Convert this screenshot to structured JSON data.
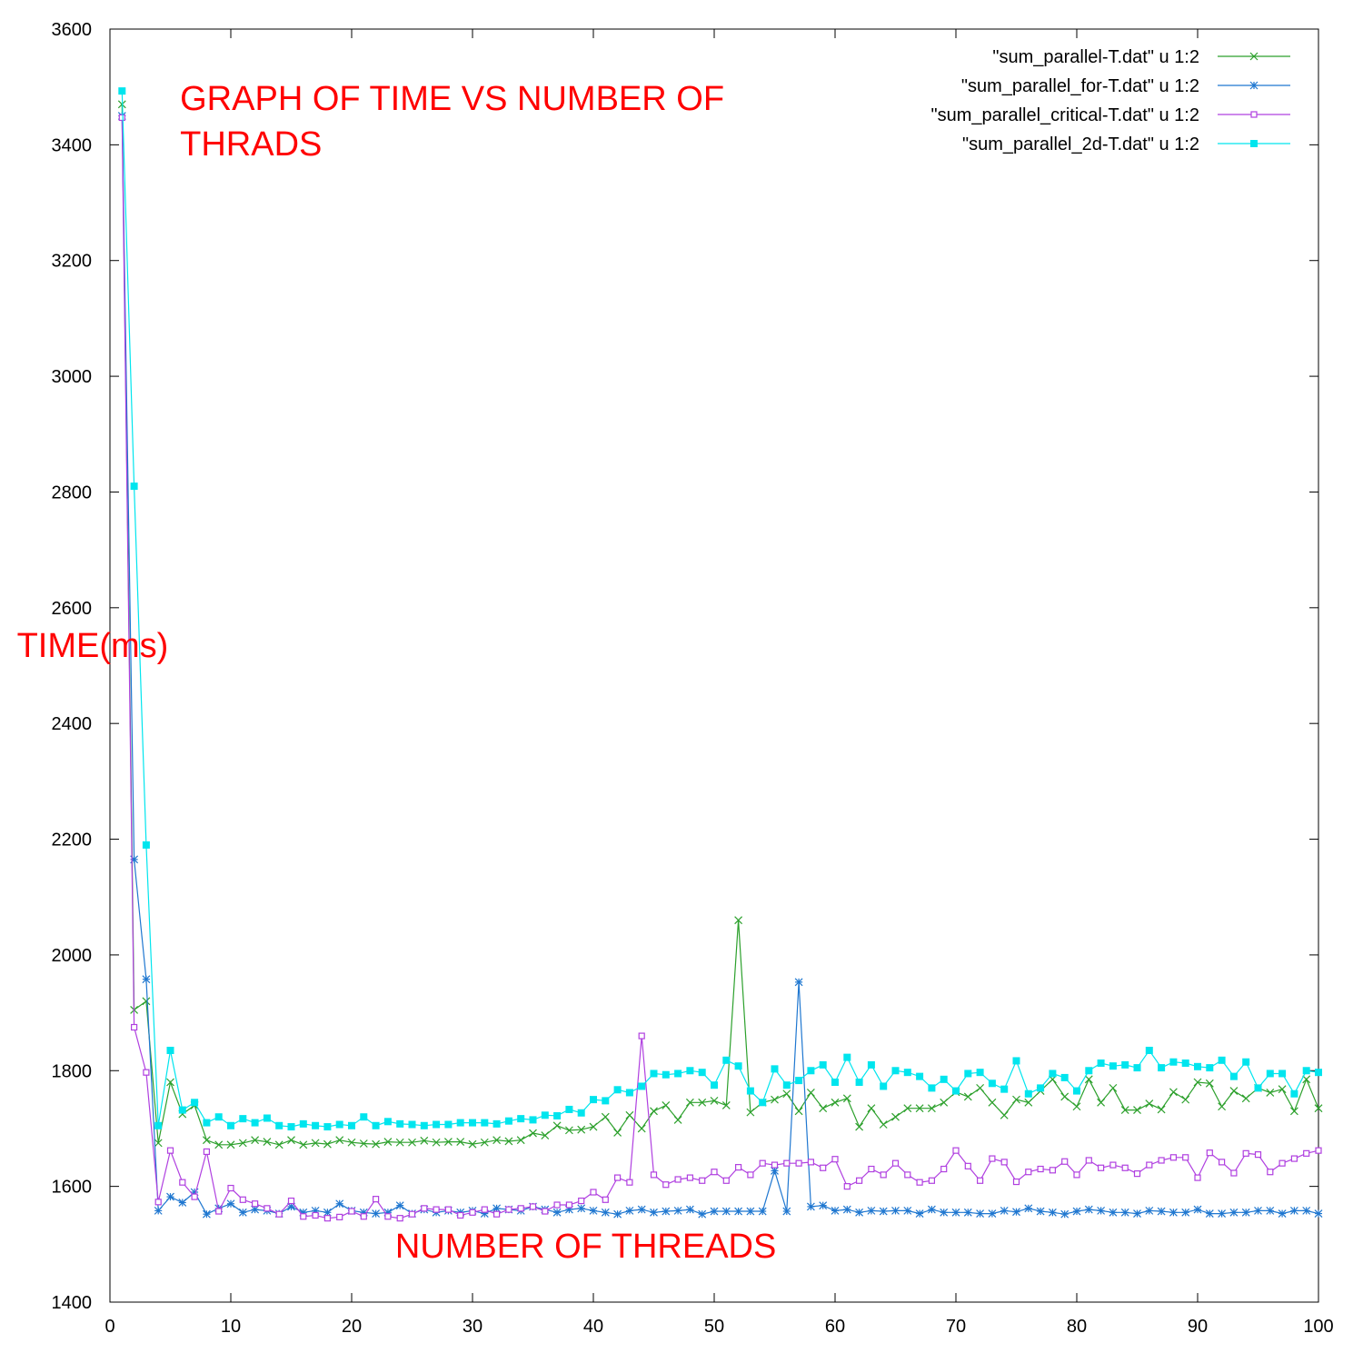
{
  "chart_data": {
    "type": "line",
    "title": "",
    "xlabel": "",
    "ylabel": "",
    "xlim": [
      0,
      100
    ],
    "ylim": [
      1400,
      3600
    ],
    "x_ticks": [
      0,
      10,
      20,
      30,
      40,
      50,
      60,
      70,
      80,
      90,
      100
    ],
    "y_ticks": [
      1400,
      1600,
      1800,
      2000,
      2200,
      2400,
      2600,
      2800,
      3000,
      3200,
      3400,
      3600
    ],
    "grid": false,
    "legend_position": "top-right",
    "annotations": [
      {
        "text": "GRAPH OF TIME VS NUMBER OF",
        "x": 5.8,
        "y": 3460
      },
      {
        "text": "THRADS",
        "x": 5.8,
        "y": 3382
      },
      {
        "text": "TIME(ms)",
        "x": -7.7,
        "y": 2515
      },
      {
        "text": "NUMBER OF THREADS",
        "x": 23.6,
        "y": 1477
      }
    ],
    "series": [
      {
        "name": "\"sum_parallel-T.dat\" u 1:2",
        "color": "#2ca02c",
        "marker": "cross",
        "x": [
          1,
          2,
          3,
          4,
          5,
          6,
          7,
          8,
          9,
          10,
          11,
          12,
          13,
          14,
          15,
          16,
          17,
          18,
          19,
          20,
          21,
          22,
          23,
          24,
          25,
          26,
          27,
          28,
          29,
          30,
          31,
          32,
          33,
          34,
          35,
          36,
          37,
          38,
          39,
          40,
          41,
          42,
          43,
          44,
          45,
          46,
          47,
          48,
          49,
          50,
          51,
          52,
          53,
          54,
          55,
          56,
          57,
          58,
          59,
          60,
          61,
          62,
          63,
          64,
          65,
          66,
          67,
          68,
          69,
          70,
          71,
          72,
          73,
          74,
          75,
          76,
          77,
          78,
          79,
          80,
          81,
          82,
          83,
          84,
          85,
          86,
          87,
          88,
          89,
          90,
          91,
          92,
          93,
          94,
          95,
          96,
          97,
          98,
          99,
          100
        ],
        "y": [
          3470,
          1905,
          1920,
          1675,
          1780,
          1725,
          1740,
          1680,
          1672,
          1672,
          1675,
          1680,
          1677,
          1672,
          1680,
          1672,
          1675,
          1673,
          1680,
          1676,
          1674,
          1673,
          1677,
          1676,
          1676,
          1679,
          1676,
          1677,
          1677,
          1673,
          1676,
          1680,
          1678,
          1680,
          1692,
          1688,
          1705,
          1697,
          1698,
          1703,
          1720,
          1693,
          1723,
          1700,
          1730,
          1740,
          1715,
          1745,
          1745,
          1748,
          1740,
          2060,
          1728,
          1745,
          1750,
          1760,
          1730,
          1762,
          1735,
          1745,
          1752,
          1703,
          1735,
          1707,
          1720,
          1735,
          1735,
          1735,
          1745,
          1763,
          1755,
          1770,
          1745,
          1723,
          1750,
          1745,
          1765,
          1785,
          1755,
          1738,
          1785,
          1745,
          1770,
          1732,
          1732,
          1743,
          1733,
          1763,
          1750,
          1780,
          1778,
          1738,
          1765,
          1752,
          1770,
          1762,
          1768,
          1730,
          1785,
          1735
        ]
      },
      {
        "name": "\"sum_parallel_for-T.dat\" u 1:2",
        "color": "#1f77d0",
        "marker": "star",
        "x": [
          1,
          2,
          3,
          4,
          5,
          6,
          7,
          8,
          9,
          10,
          11,
          12,
          13,
          14,
          15,
          16,
          17,
          18,
          19,
          20,
          21,
          22,
          23,
          24,
          25,
          26,
          27,
          28,
          29,
          30,
          31,
          32,
          33,
          34,
          35,
          36,
          37,
          38,
          39,
          40,
          41,
          42,
          43,
          44,
          45,
          46,
          47,
          48,
          49,
          50,
          51,
          52,
          53,
          54,
          55,
          56,
          57,
          58,
          59,
          60,
          61,
          62,
          63,
          64,
          65,
          66,
          67,
          68,
          69,
          70,
          71,
          72,
          73,
          74,
          75,
          76,
          77,
          78,
          79,
          80,
          81,
          82,
          83,
          84,
          85,
          86,
          87,
          88,
          89,
          90,
          91,
          92,
          93,
          94,
          95,
          96,
          97,
          98,
          99,
          100
        ],
        "y": [
          3450,
          2165,
          1958,
          1558,
          1582,
          1572,
          1590,
          1552,
          1562,
          1570,
          1555,
          1560,
          1558,
          1553,
          1565,
          1555,
          1558,
          1555,
          1570,
          1558,
          1555,
          1553,
          1555,
          1567,
          1553,
          1560,
          1555,
          1558,
          1555,
          1558,
          1553,
          1562,
          1560,
          1558,
          1565,
          1560,
          1555,
          1560,
          1562,
          1558,
          1555,
          1552,
          1558,
          1560,
          1555,
          1557,
          1558,
          1560,
          1552,
          1557,
          1557,
          1557,
          1557,
          1557,
          1627,
          1557,
          1953,
          1565,
          1567,
          1558,
          1560,
          1555,
          1558,
          1557,
          1558,
          1558,
          1553,
          1560,
          1555,
          1555,
          1555,
          1553,
          1553,
          1558,
          1556,
          1562,
          1557,
          1555,
          1552,
          1557,
          1560,
          1558,
          1555,
          1555,
          1553,
          1558,
          1557,
          1555,
          1555,
          1560,
          1553,
          1553,
          1555,
          1555,
          1558,
          1558,
          1553,
          1558,
          1558,
          1553
        ]
      },
      {
        "name": "\"sum_parallel_critical-T.dat\" u 1:2",
        "color": "#b040e0",
        "marker": "open-square",
        "x": [
          1,
          2,
          3,
          4,
          5,
          6,
          7,
          8,
          9,
          10,
          11,
          12,
          13,
          14,
          15,
          16,
          17,
          18,
          19,
          20,
          21,
          22,
          23,
          24,
          25,
          26,
          27,
          28,
          29,
          30,
          31,
          32,
          33,
          34,
          35,
          36,
          37,
          38,
          39,
          40,
          41,
          42,
          43,
          44,
          45,
          46,
          47,
          48,
          49,
          50,
          51,
          52,
          53,
          54,
          55,
          56,
          57,
          58,
          59,
          60,
          61,
          62,
          63,
          64,
          65,
          66,
          67,
          68,
          69,
          70,
          71,
          72,
          73,
          74,
          75,
          76,
          77,
          78,
          79,
          80,
          81,
          82,
          83,
          84,
          85,
          86,
          87,
          88,
          89,
          90,
          91,
          92,
          93,
          94,
          95,
          96,
          97,
          98,
          99,
          100
        ],
        "y": [
          3447,
          1875,
          1797,
          1573,
          1662,
          1607,
          1582,
          1660,
          1557,
          1597,
          1577,
          1570,
          1562,
          1552,
          1575,
          1548,
          1550,
          1545,
          1547,
          1557,
          1548,
          1578,
          1548,
          1545,
          1552,
          1562,
          1560,
          1560,
          1550,
          1555,
          1560,
          1552,
          1560,
          1562,
          1565,
          1557,
          1568,
          1568,
          1575,
          1590,
          1577,
          1615,
          1607,
          1860,
          1620,
          1603,
          1612,
          1615,
          1610,
          1625,
          1610,
          1633,
          1620,
          1640,
          1637,
          1640,
          1640,
          1642,
          1632,
          1647,
          1600,
          1610,
          1630,
          1620,
          1640,
          1620,
          1607,
          1610,
          1630,
          1662,
          1635,
          1610,
          1648,
          1642,
          1608,
          1625,
          1630,
          1628,
          1643,
          1620,
          1645,
          1632,
          1637,
          1632,
          1622,
          1637,
          1645,
          1650,
          1650,
          1615,
          1658,
          1642,
          1623,
          1657,
          1655,
          1625,
          1640,
          1648,
          1657,
          1662
        ]
      },
      {
        "name": "\"sum_parallel_2d-T.dat\" u 1:2",
        "color": "#00e5ee",
        "marker": "filled-square",
        "x": [
          1,
          2,
          3,
          4,
          5,
          6,
          7,
          8,
          9,
          10,
          11,
          12,
          13,
          14,
          15,
          16,
          17,
          18,
          19,
          20,
          21,
          22,
          23,
          24,
          25,
          26,
          27,
          28,
          29,
          30,
          31,
          32,
          33,
          34,
          35,
          36,
          37,
          38,
          39,
          40,
          41,
          42,
          43,
          44,
          45,
          46,
          47,
          48,
          49,
          50,
          51,
          52,
          53,
          54,
          55,
          56,
          57,
          58,
          59,
          60,
          61,
          62,
          63,
          64,
          65,
          66,
          67,
          68,
          69,
          70,
          71,
          72,
          73,
          74,
          75,
          76,
          77,
          78,
          79,
          80,
          81,
          82,
          83,
          84,
          85,
          86,
          87,
          88,
          89,
          90,
          91,
          92,
          93,
          94,
          95,
          96,
          97,
          98,
          99,
          100
        ],
        "y": [
          3493,
          2810,
          2190,
          1705,
          1835,
          1732,
          1745,
          1710,
          1720,
          1705,
          1717,
          1710,
          1718,
          1705,
          1703,
          1708,
          1705,
          1703,
          1707,
          1705,
          1720,
          1705,
          1712,
          1708,
          1707,
          1705,
          1707,
          1707,
          1710,
          1710,
          1710,
          1708,
          1713,
          1717,
          1715,
          1723,
          1722,
          1733,
          1727,
          1750,
          1748,
          1767,
          1762,
          1773,
          1795,
          1793,
          1795,
          1800,
          1797,
          1775,
          1818,
          1808,
          1765,
          1745,
          1803,
          1775,
          1783,
          1800,
          1810,
          1780,
          1823,
          1780,
          1810,
          1773,
          1800,
          1797,
          1790,
          1770,
          1785,
          1765,
          1795,
          1797,
          1778,
          1768,
          1817,
          1760,
          1770,
          1795,
          1788,
          1765,
          1800,
          1813,
          1808,
          1810,
          1805,
          1835,
          1805,
          1815,
          1813,
          1807,
          1805,
          1818,
          1790,
          1815,
          1770,
          1795,
          1795,
          1760,
          1800,
          1797
        ]
      }
    ]
  }
}
